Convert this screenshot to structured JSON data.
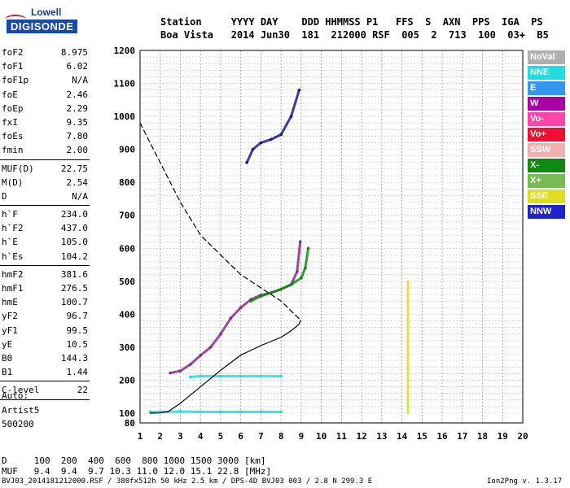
{
  "logo": {
    "top": "Lowell",
    "main": "DIGISONDE"
  },
  "header": {
    "row1": "Station     YYYY DAY    DDD HHMMSS P1   FFS  S  AXN  PPS  IGA  PS",
    "row2": "Boa Vista   2014 Jun30  181  212000 RSF  005  2  713  100  03+  B5"
  },
  "params_groups": [
    [
      {
        "label": "foF2",
        "value": "8.975"
      },
      {
        "label": "foF1",
        "value": "6.02"
      },
      {
        "label": "foF1p",
        "value": "N/A"
      },
      {
        "label": "foE",
        "value": "2.46"
      },
      {
        "label": "foEp",
        "value": "2.29"
      },
      {
        "label": "fxI",
        "value": "9.35"
      },
      {
        "label": "foEs",
        "value": "7.80"
      },
      {
        "label": "fmin",
        "value": "2.00"
      }
    ],
    [
      {
        "label": "MUF(D)",
        "value": "22.75"
      },
      {
        "label": "M(D)",
        "value": "2.54"
      },
      {
        "label": "D",
        "value": "N/A"
      }
    ],
    [
      {
        "label": "h`F",
        "value": "234.0"
      },
      {
        "label": "h`F2",
        "value": "437.0"
      },
      {
        "label": "h`E",
        "value": "105.0"
      },
      {
        "label": "h`Es",
        "value": "104.2"
      }
    ],
    [
      {
        "label": "hmF2",
        "value": "381.6"
      },
      {
        "label": "hmF1",
        "value": "276.5"
      },
      {
        "label": "hmE",
        "value": "100.7"
      },
      {
        "label": "yF2",
        "value": "96.7"
      },
      {
        "label": "yF1",
        "value": "99.5"
      },
      {
        "label": "yE",
        "value": "10.5"
      },
      {
        "label": "B0",
        "value": "144.3"
      },
      {
        "label": "B1",
        "value": "1.44"
      }
    ],
    [
      {
        "label": "C-level",
        "value": "22"
      }
    ]
  ],
  "autoscaling": {
    "label": "Auto:",
    "artist": "Artist5",
    "version": "500200"
  },
  "legend": [
    {
      "label": "NoVal",
      "color": "#b0b0b0"
    },
    {
      "label": "NNE",
      "color": "#22dddd"
    },
    {
      "label": "E",
      "color": "#3399ee"
    },
    {
      "label": "W",
      "color": "#aa00aa"
    },
    {
      "label": "Vo-",
      "color": "#ff44aa"
    },
    {
      "label": "Vo+",
      "color": "#ee1133"
    },
    {
      "label": "SSW",
      "color": "#f0b0b0"
    },
    {
      "label": "X-",
      "color": "#118811"
    },
    {
      "label": "X+",
      "color": "#77bb55"
    },
    {
      "label": "SSE",
      "color": "#dddd22"
    },
    {
      "label": "NNW",
      "color": "#2222cc"
    }
  ],
  "footer": {
    "d_row": "D     100  200  400  600  800 1000 1500 3000 [km]",
    "muf_row": "MUF   9.4  9.4  9.7 10.3 11.0 12.0 15.1 22.8 [MHz]",
    "file_info": "BVJ03_2014181212000.RSF / 380fx512h 50 kHz 2.5 km / DPS-4D BVJ03 003 / 2.8 N 299.3 E",
    "program": "Ion2Png v. 1.3.17"
  },
  "chart_data": {
    "type": "scatter",
    "title": "",
    "xlabel": "",
    "ylabel": "",
    "x_ticks": [
      1,
      2,
      3,
      4,
      5,
      6,
      7,
      8,
      9,
      10,
      11,
      12,
      13,
      14,
      15,
      16,
      17,
      18,
      19,
      20
    ],
    "y_ticks": [
      80,
      100,
      200,
      300,
      400,
      500,
      600,
      700,
      800,
      900,
      1000,
      1100,
      1200
    ],
    "xlim": [
      1,
      20
    ],
    "ylim": [
      80,
      1200
    ],
    "grid": true,
    "x_unit": "MHz",
    "y_unit": "km",
    "series": [
      {
        "name": "O-trace",
        "color": "#8b2a8a",
        "x": [
          2.5,
          3,
          3.5,
          4,
          4.5,
          5,
          5.5,
          6,
          6.5,
          7,
          7.5,
          8,
          8.5,
          8.8,
          8.95
        ],
        "y": [
          222,
          228,
          248,
          275,
          300,
          340,
          388,
          420,
          445,
          458,
          465,
          476,
          490,
          530,
          620
        ]
      },
      {
        "name": "X-trace",
        "color": "#118811",
        "x": [
          6.5,
          7,
          7.5,
          8,
          8.5,
          9,
          9.2,
          9.35
        ],
        "y": [
          440,
          455,
          465,
          476,
          490,
          510,
          540,
          600
        ]
      },
      {
        "name": "F2 2-hop",
        "color": "#1a1a8a",
        "x": [
          6.3,
          6.6,
          7,
          7.5,
          8,
          8.5,
          8.9
        ],
        "y": [
          860,
          900,
          920,
          930,
          945,
          1000,
          1080
        ]
      },
      {
        "name": "Es echoes",
        "color": "#22dddd",
        "x": [
          1.5,
          2,
          3,
          4,
          5,
          6,
          7,
          8
        ],
        "y": [
          104,
          104,
          105,
          104,
          104,
          104,
          104,
          104
        ]
      },
      {
        "name": "Es 2-hop",
        "color": "#22dddd",
        "x": [
          3.5,
          4,
          5,
          6,
          7,
          8
        ],
        "y": [
          210,
          212,
          212,
          212,
          212,
          212
        ]
      },
      {
        "name": "Profile (real height)",
        "color": "#000000",
        "x": [
          1.5,
          2,
          2.4,
          3,
          3.5,
          4,
          5,
          6,
          7,
          8,
          8.5,
          8.9,
          8.975
        ],
        "y": [
          100,
          101,
          105,
          130,
          155,
          180,
          230,
          276,
          305,
          330,
          350,
          370,
          381.6
        ]
      },
      {
        "name": "Profile (dashed)",
        "color": "#000000",
        "x": [
          1,
          1.5,
          2,
          3,
          4,
          5,
          6,
          7,
          8,
          8.5,
          8.975
        ],
        "y": [
          980,
          920,
          860,
          740,
          640,
          580,
          520,
          480,
          440,
          410,
          381.6
        ]
      },
      {
        "name": "Noise line",
        "color": "#dddd22",
        "x": [
          14.3,
          14.3,
          14.3,
          14.3,
          14.3
        ],
        "y": [
          100,
          200,
          300,
          400,
          500
        ]
      }
    ]
  }
}
